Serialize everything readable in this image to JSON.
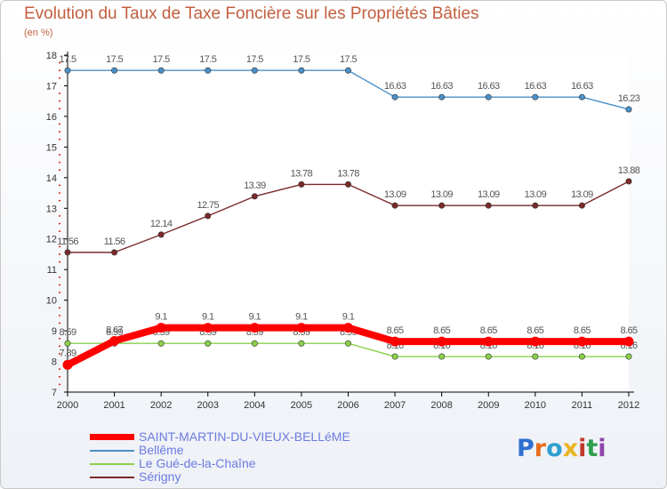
{
  "chart_data": {
    "type": "line",
    "title": "Evolution du Taux de Taxe Foncière sur les Propriétés Bâties",
    "ylabel": "(en %)",
    "xlabel": "",
    "categories": [
      "2000",
      "2001",
      "2002",
      "2003",
      "2004",
      "2005",
      "2006",
      "2007",
      "2008",
      "2009",
      "2010",
      "2011",
      "2012"
    ],
    "ylim": [
      7,
      18
    ],
    "yticks": [
      7,
      8,
      9,
      10,
      11,
      12,
      13,
      14,
      15,
      16,
      17,
      18
    ],
    "series": [
      {
        "name": "Bellême",
        "color": "#4a90c8",
        "values": [
          17.5,
          17.5,
          17.5,
          17.5,
          17.5,
          17.5,
          17.5,
          16.63,
          16.63,
          16.63,
          16.63,
          16.63,
          16.23
        ],
        "labels": [
          "17.5",
          "17.5",
          "17.5",
          "17.5",
          "17.5",
          "17.5",
          "17.5",
          "16.63",
          "16.63",
          "16.63",
          "16.63",
          "16.63",
          "16.23"
        ]
      },
      {
        "name": "Sérigny",
        "color": "#7a2a2a",
        "values": [
          11.56,
          11.56,
          12.14,
          12.75,
          13.39,
          13.78,
          13.78,
          13.09,
          13.09,
          13.09,
          13.09,
          13.09,
          13.88
        ],
        "labels": [
          "11.56",
          "11.56",
          "12.14",
          "12.75",
          "13.39",
          "13.78",
          "13.78",
          "13.09",
          "13.09",
          "13.09",
          "13.09",
          "13.09",
          "13.88"
        ]
      },
      {
        "name": "Le Gué-de-la-Chaîne",
        "color": "#8ad04a",
        "values": [
          8.59,
          8.59,
          8.59,
          8.59,
          8.59,
          8.59,
          8.59,
          8.16,
          8.16,
          8.16,
          8.16,
          8.16,
          8.16
        ],
        "labels": [
          "8.59",
          "8.59",
          "8.59",
          "8.59",
          "8.59",
          "8.59",
          "8.59",
          "8.16",
          "8.16",
          "8.16",
          "8.16",
          "8.16",
          "8.16"
        ]
      },
      {
        "name": "SAINT-MARTIN-DU-VIEUX-BELLéME",
        "color": "#ff0000",
        "values": [
          7.89,
          8.67,
          9.1,
          9.1,
          9.1,
          9.1,
          9.1,
          8.65,
          8.65,
          8.65,
          8.65,
          8.65,
          8.65
        ],
        "labels": [
          "7.89",
          "8.67",
          "9.1",
          "9.1",
          "9.1",
          "9.1",
          "9.1",
          "8.65",
          "8.65",
          "8.65",
          "8.65",
          "8.65",
          "8.65"
        ]
      }
    ],
    "legend": [
      {
        "name": "SAINT-MARTIN-DU-VIEUX-BELLéME",
        "color": "#ff0000",
        "thick": true
      },
      {
        "name": "Bellême",
        "color": "#4a90c8",
        "thick": false
      },
      {
        "name": "Le Gué-de-la-Chaîne",
        "color": "#8ad04a",
        "thick": false
      },
      {
        "name": "Sérigny",
        "color": "#7a2a2a",
        "thick": false
      }
    ]
  },
  "brand": {
    "letters": [
      "P",
      "r",
      "o",
      "x",
      "i",
      "t",
      "i"
    ],
    "colors": [
      "#2f6fcf",
      "#e86d1f",
      "#2f9fcf",
      "#e8b41f",
      "#c0392b",
      "#2f9f4f",
      "#8e44ad"
    ]
  }
}
